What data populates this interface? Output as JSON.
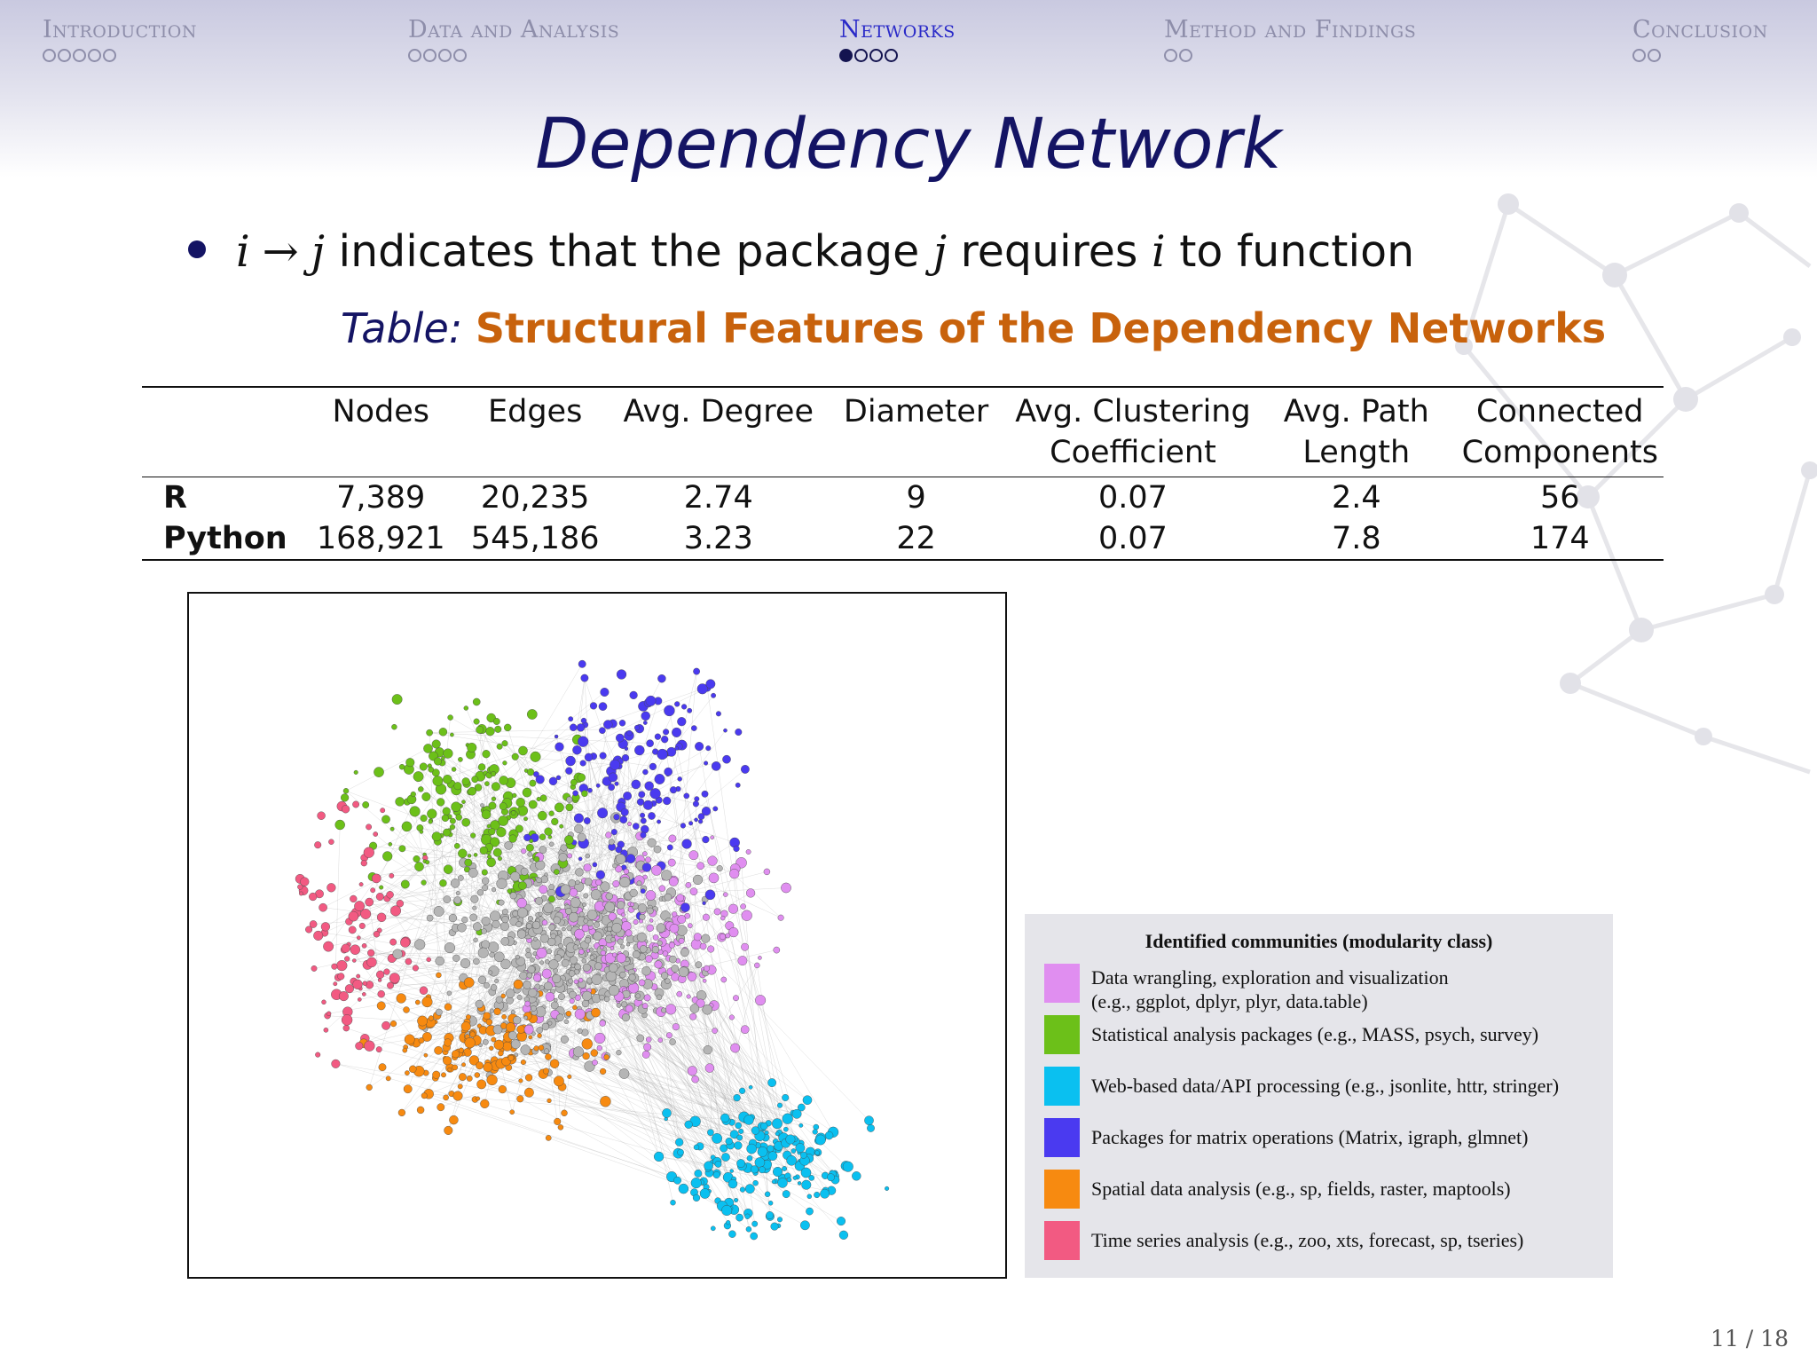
{
  "nav": {
    "sections": [
      {
        "label": "Introduction",
        "dots": 5,
        "filled": 0,
        "active": false
      },
      {
        "label": "Data and Analysis",
        "dots": 4,
        "filled": 0,
        "active": false
      },
      {
        "label": "Networks",
        "dots": 4,
        "filled": 1,
        "active": true
      },
      {
        "label": "Method and Findings",
        "dots": 2,
        "filled": 0,
        "active": false
      },
      {
        "label": "Conclusion",
        "dots": 2,
        "filled": 0,
        "active": false
      }
    ]
  },
  "slide": {
    "title": "Dependency Network",
    "bullet": {
      "var_i": "i",
      "arrow": "→",
      "var_j": "j",
      "text_1": "indicates that the package",
      "text_2": "requires",
      "text_3": "to function"
    },
    "caption": {
      "prefix": "Table:",
      "title": "Structural Features of the Dependency Networks"
    }
  },
  "table": {
    "headers": [
      "",
      "Nodes",
      "Edges",
      "Avg. Degree",
      "Diameter",
      "Avg. Clustering\nCoefficient",
      "Avg. Path\nLength",
      "Connected\nComponents"
    ],
    "rows": [
      [
        "R",
        "7,389",
        "20,235",
        "2.74",
        "9",
        "0.07",
        "2.4",
        "56"
      ],
      [
        "Python",
        "168,921",
        "545,186",
        "3.23",
        "22",
        "0.07",
        "7.8",
        "174"
      ]
    ]
  },
  "legend": {
    "title": "Identified communities (modularity class)",
    "items": [
      {
        "label": "Data wrangling, exploration and visualization\n(e.g., ggplot, dplyr, plyr, data.table)",
        "color": "#e08ef0"
      },
      {
        "label": "Statistical analysis packages  (e.g., MASS, psych, survey)",
        "color": "#6cc019"
      },
      {
        "label": "Web-based data/API processing (e.g., jsonlite, httr, stringer)",
        "color": "#0ac0f0"
      },
      {
        "label": "Packages for matrix operations (Matrix, igraph, glmnet)",
        "color": "#4a3af0"
      },
      {
        "label": "Spatial data analysis (e.g., sp, fields, raster, maptools)",
        "color": "#f78a10"
      },
      {
        "label": "Time series analysis (e.g., zoo, xts, forecast, sp, tseries)",
        "color": "#f25a82"
      }
    ]
  },
  "page_number": "11 / 18"
}
